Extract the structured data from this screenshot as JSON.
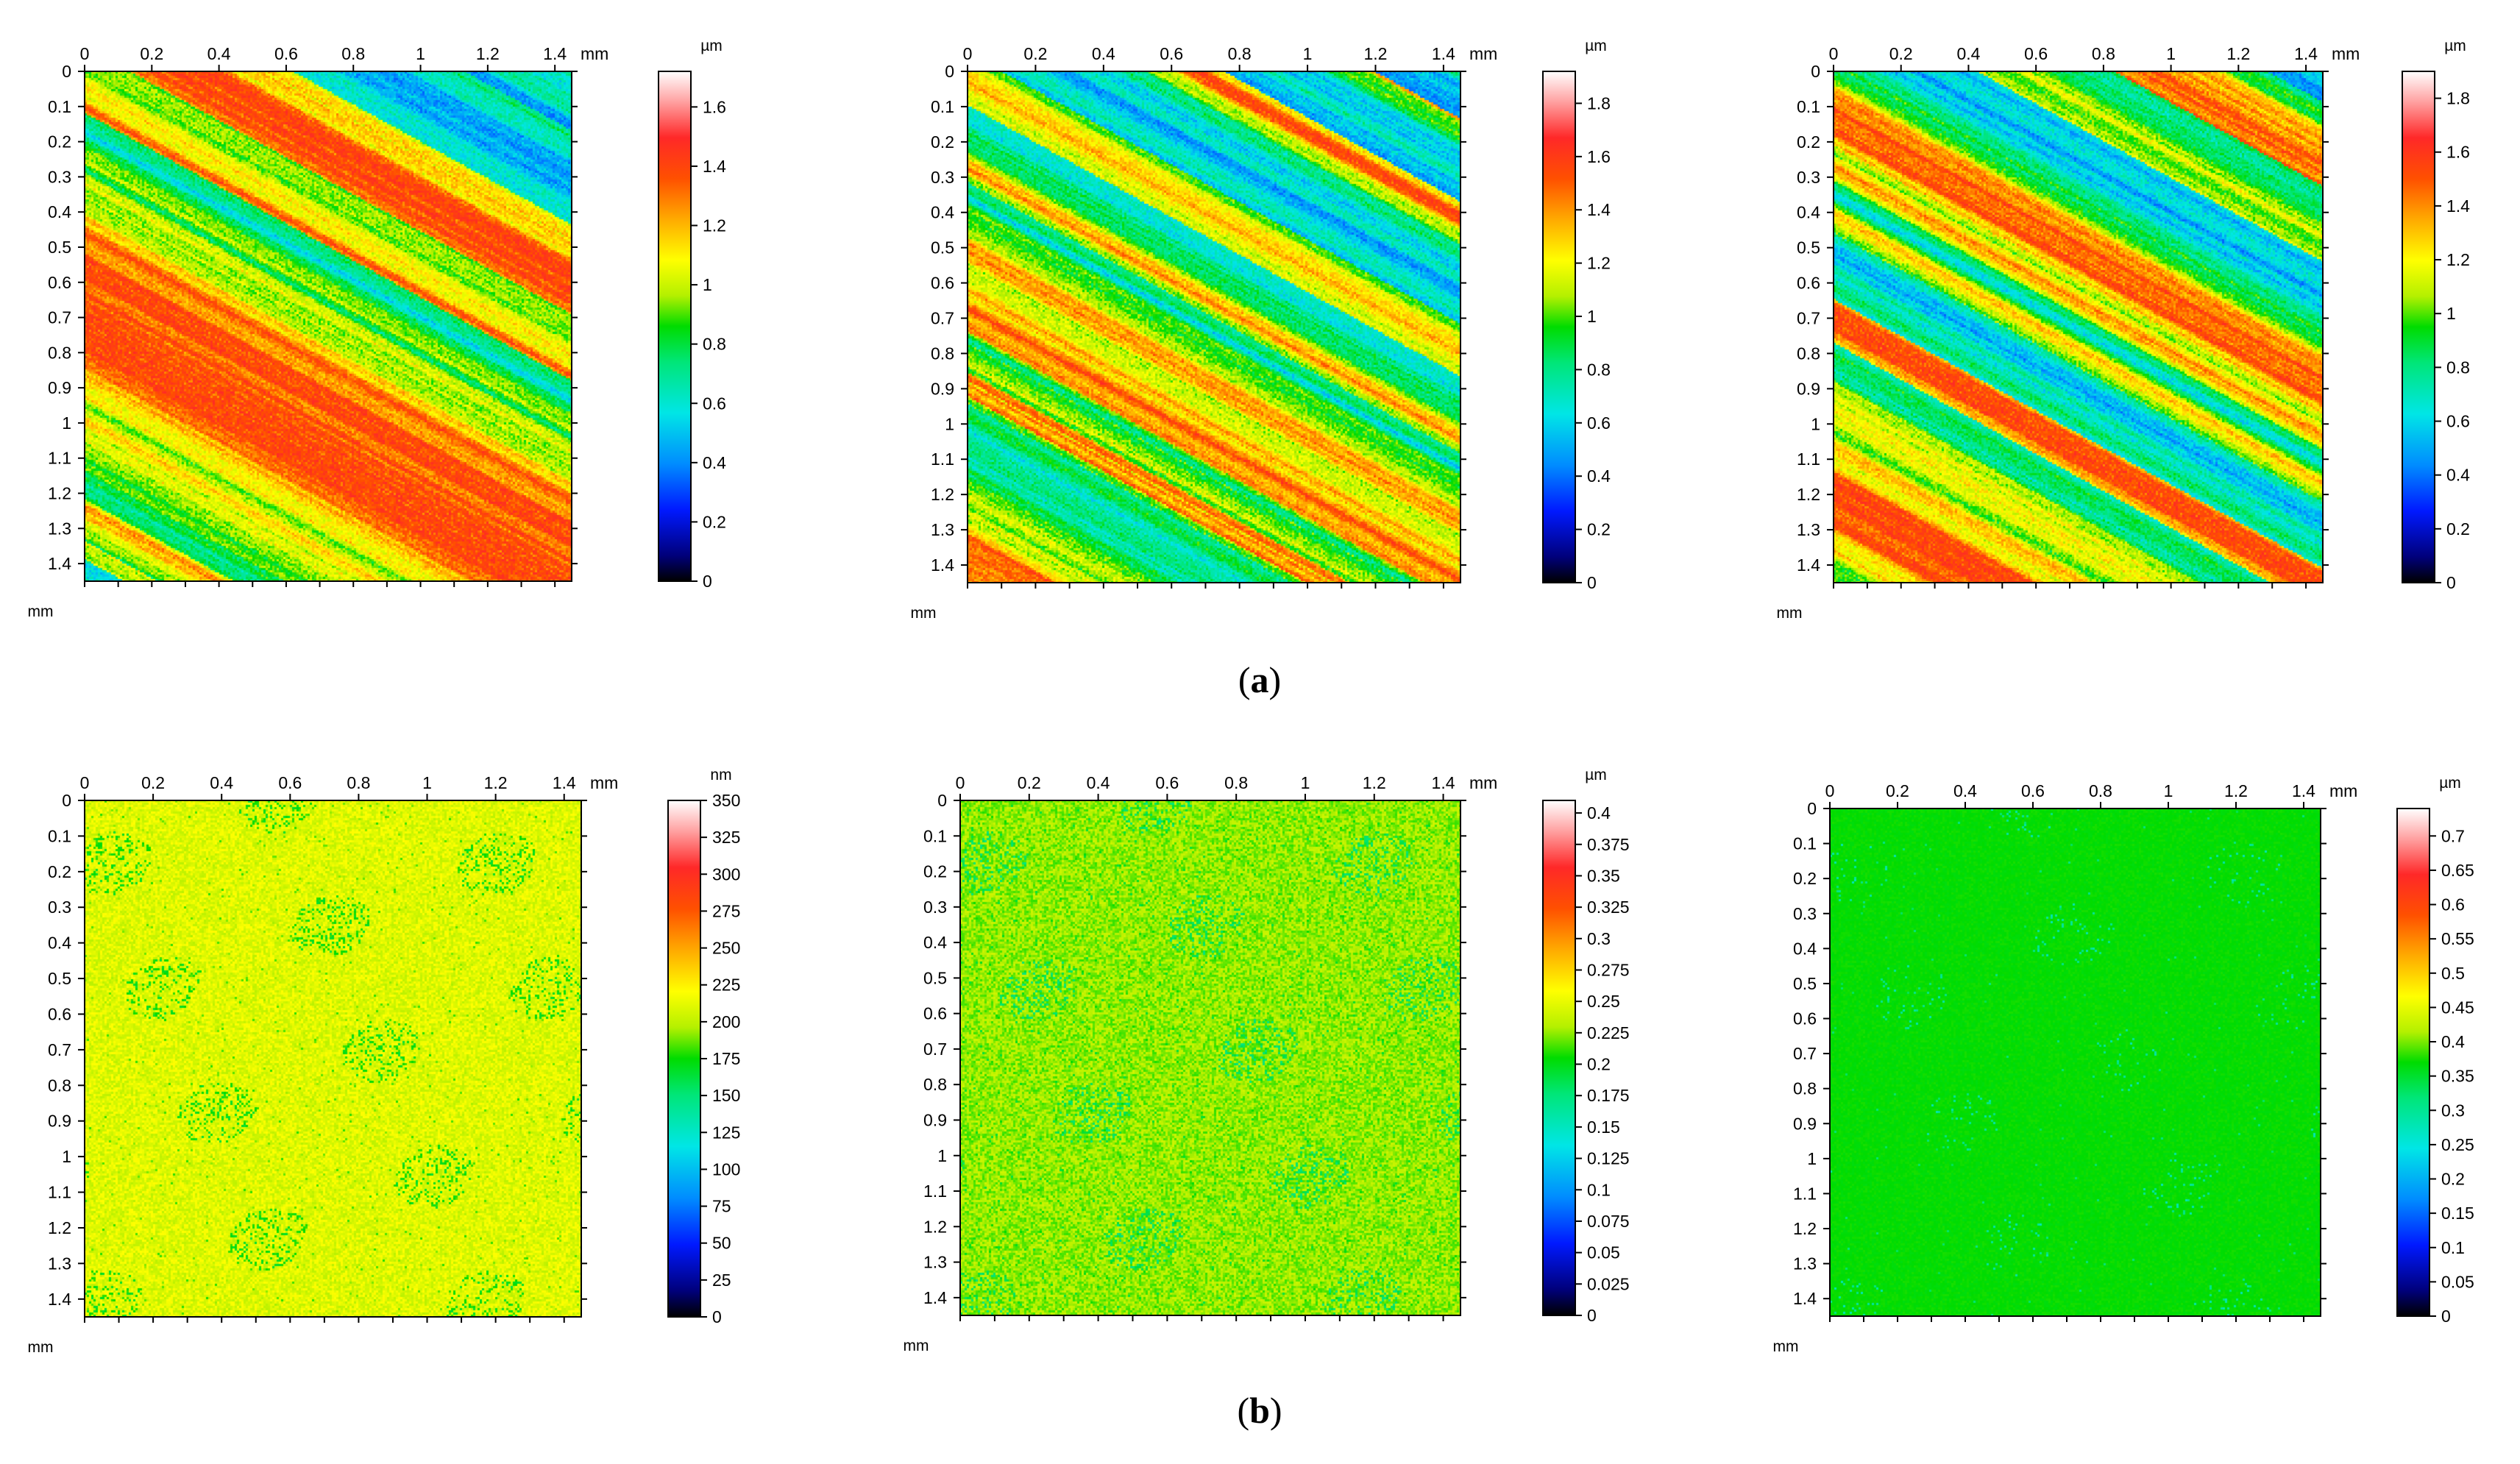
{
  "captions": {
    "a": {
      "open": "(",
      "letter": "a",
      "close": ")"
    },
    "b": {
      "open": "(",
      "letter": "b",
      "close": ")"
    }
  },
  "chart_data": [
    {
      "id": "a1",
      "type": "heatmap",
      "row": "a",
      "pattern": "stripes",
      "seed": 11,
      "x_ticks": [
        "0",
        "0.2",
        "0.4",
        "0.6",
        "0.8",
        "1",
        "1.2",
        "1.4"
      ],
      "x_unit": "mm",
      "y_ticks": [
        "0",
        "0.1",
        "0.2",
        "0.3",
        "0.4",
        "0.5",
        "0.6",
        "0.7",
        "0.8",
        "0.9",
        "1",
        "1.1",
        "1.2",
        "1.3",
        "1.4"
      ],
      "y_unit": "mm",
      "colorbar": {
        "unit": "µm",
        "ticks": [
          "0",
          "0.2",
          "0.4",
          "0.6",
          "0.8",
          "1",
          "1.2",
          "1.4",
          "1.6"
        ],
        "max": 1.72
      }
    },
    {
      "id": "a2",
      "type": "heatmap",
      "row": "a",
      "pattern": "stripes",
      "seed": 23,
      "x_ticks": [
        "0",
        "0.2",
        "0.4",
        "0.6",
        "0.8",
        "1",
        "1.2",
        "1.4"
      ],
      "x_unit": "mm",
      "y_ticks": [
        "0",
        "0.1",
        "0.2",
        "0.3",
        "0.4",
        "0.5",
        "0.6",
        "0.7",
        "0.8",
        "0.9",
        "1",
        "1.1",
        "1.2",
        "1.3",
        "1.4"
      ],
      "y_unit": "mm",
      "colorbar": {
        "unit": "µm",
        "ticks": [
          "0",
          "0.2",
          "0.4",
          "0.6",
          "0.8",
          "1",
          "1.2",
          "1.4",
          "1.6",
          "1.8"
        ],
        "max": 1.92
      }
    },
    {
      "id": "a3",
      "type": "heatmap",
      "row": "a",
      "pattern": "stripes",
      "seed": 37,
      "x_ticks": [
        "0",
        "0.2",
        "0.4",
        "0.6",
        "0.8",
        "1",
        "1.2",
        "1.4"
      ],
      "x_unit": "mm",
      "y_ticks": [
        "0",
        "0.1",
        "0.2",
        "0.3",
        "0.4",
        "0.5",
        "0.6",
        "0.7",
        "0.8",
        "0.9",
        "1",
        "1.1",
        "1.2",
        "1.3",
        "1.4"
      ],
      "y_unit": "mm",
      "colorbar": {
        "unit": "µm",
        "ticks": [
          "0",
          "0.2",
          "0.4",
          "0.6",
          "0.8",
          "1",
          "1.2",
          "1.4",
          "1.6",
          "1.8"
        ],
        "max": 1.9
      }
    },
    {
      "id": "b1",
      "type": "heatmap",
      "row": "b",
      "pattern": "noise-yellow",
      "seed": 41,
      "x_ticks": [
        "0",
        "0.2",
        "0.4",
        "0.6",
        "0.8",
        "1",
        "1.2",
        "1.4"
      ],
      "x_unit": "mm",
      "y_ticks": [
        "0",
        "0.1",
        "0.2",
        "0.3",
        "0.4",
        "0.5",
        "0.6",
        "0.7",
        "0.8",
        "0.9",
        "1",
        "1.1",
        "1.2",
        "1.3",
        "1.4"
      ],
      "y_unit": "mm",
      "colorbar": {
        "unit": "nm",
        "ticks": [
          "0",
          "25",
          "50",
          "75",
          "100",
          "125",
          "150",
          "175",
          "200",
          "225",
          "250",
          "275",
          "300",
          "325",
          "350"
        ],
        "max": 350
      }
    },
    {
      "id": "b2",
      "type": "heatmap",
      "row": "b",
      "pattern": "noise-yellowgreen",
      "seed": 53,
      "x_ticks": [
        "0",
        "0.2",
        "0.4",
        "0.6",
        "0.8",
        "1",
        "1.2",
        "1.4"
      ],
      "x_unit": "mm",
      "y_ticks": [
        "0",
        "0.1",
        "0.2",
        "0.3",
        "0.4",
        "0.5",
        "0.6",
        "0.7",
        "0.8",
        "0.9",
        "1",
        "1.1",
        "1.2",
        "1.3",
        "1.4"
      ],
      "y_unit": "mm",
      "colorbar": {
        "unit": "µm",
        "ticks": [
          "0",
          "0.025",
          "0.05",
          "0.075",
          "0.1",
          "0.125",
          "0.15",
          "0.175",
          "0.2",
          "0.225",
          "0.25",
          "0.275",
          "0.3",
          "0.325",
          "0.35",
          "0.375",
          "0.4"
        ],
        "max": 0.41
      }
    },
    {
      "id": "b3",
      "type": "heatmap",
      "row": "b",
      "pattern": "noise-green",
      "seed": 67,
      "x_ticks": [
        "0",
        "0.2",
        "0.4",
        "0.6",
        "0.8",
        "1",
        "1.2",
        "1.4"
      ],
      "x_unit": "mm",
      "y_ticks": [
        "0",
        "0.1",
        "0.2",
        "0.3",
        "0.4",
        "0.5",
        "0.6",
        "0.7",
        "0.8",
        "0.9",
        "1",
        "1.1",
        "1.2",
        "1.3",
        "1.4"
      ],
      "y_unit": "mm",
      "colorbar": {
        "unit": "µm",
        "ticks": [
          "0",
          "0.05",
          "0.1",
          "0.15",
          "0.2",
          "0.25",
          "0.3",
          "0.35",
          "0.4",
          "0.45",
          "0.5",
          "0.55",
          "0.6",
          "0.65",
          "0.7"
        ],
        "max": 0.74
      }
    }
  ]
}
